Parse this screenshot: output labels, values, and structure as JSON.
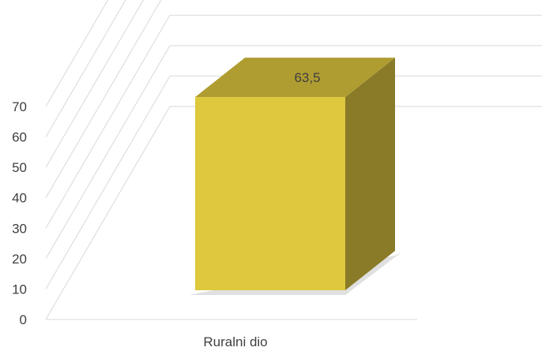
{
  "chart_data": {
    "type": "bar",
    "title": "",
    "xlabel": "",
    "ylabel": "",
    "categories": [
      "Ruralni dio"
    ],
    "values": [
      63.5
    ],
    "data_labels": [
      "63,5"
    ],
    "yticks": [
      "0",
      "10",
      "20",
      "30",
      "40",
      "50",
      "60",
      "70"
    ],
    "ylim": [
      0,
      70
    ],
    "grid": true,
    "legend": "none",
    "style": "3d-column",
    "colors": {
      "front": "#DDC83E",
      "top": "#AF9D31",
      "side": "#8A7B28",
      "grid": "#D9D9D9",
      "text": "#404040"
    }
  }
}
